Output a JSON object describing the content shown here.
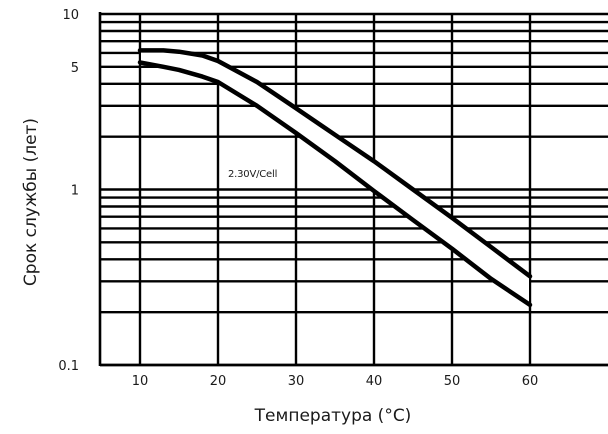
{
  "chart_data": {
    "type": "area",
    "xlabel": "Температура (°C)",
    "ylabel": "Срок службы (лет)",
    "annotation": "2.30V/Cell",
    "x_ticks": [
      "10",
      "20",
      "30",
      "40",
      "50",
      "60"
    ],
    "y_ticks": [
      "10",
      "5",
      "1",
      "0.1"
    ],
    "xlim": [
      5,
      65
    ],
    "ylim": [
      0.1,
      10
    ],
    "y_scale": "log",
    "grid": true,
    "series": [
      {
        "x": [
          10,
          13,
          15,
          18,
          20,
          25,
          30,
          35,
          40,
          45,
          50,
          55,
          60
        ],
        "values": [
          6.2,
          6.2,
          6.1,
          5.8,
          5.4,
          4.1,
          2.9,
          2.05,
          1.45,
          1.0,
          0.69,
          0.47,
          0.32
        ]
      },
      {
        "x": [
          10,
          13,
          15,
          18,
          20,
          25,
          30,
          35,
          40,
          45,
          50,
          55,
          60
        ],
        "values": [
          5.3,
          5.0,
          4.8,
          4.4,
          4.1,
          3.0,
          2.1,
          1.45,
          0.98,
          0.67,
          0.46,
          0.31,
          0.22
        ]
      }
    ],
    "colors": {
      "line": "#000000",
      "grid": "#000000",
      "fill": "#ffffff"
    }
  }
}
